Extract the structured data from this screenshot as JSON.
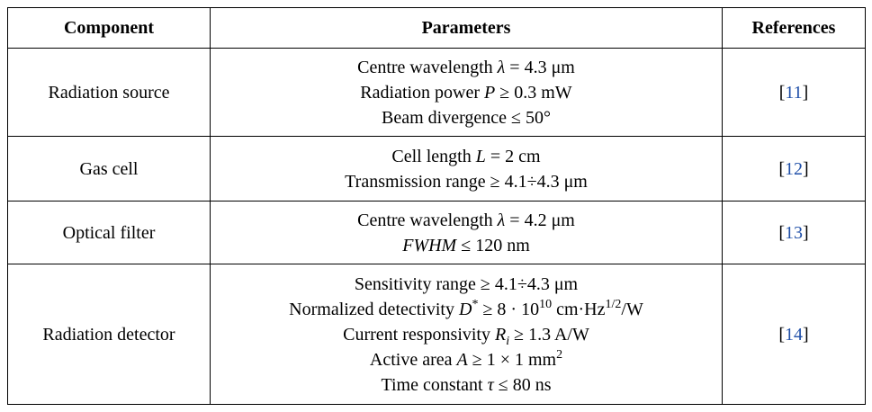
{
  "table": {
    "header": [
      "Component",
      "Parameters",
      "References"
    ],
    "rows": [
      {
        "component": "Radiation source",
        "parameters": [
          [
            {
              "t": "Centre wavelength "
            },
            {
              "t": "λ",
              "s": "italic"
            },
            {
              "t": " = 4.3 μm"
            }
          ],
          [
            {
              "t": "Radiation power "
            },
            {
              "t": "P",
              "s": "italic"
            },
            {
              "t": " ≥ 0.3 mW"
            }
          ],
          [
            {
              "t": "Beam divergence ≤ 50°"
            }
          ]
        ],
        "reference": "[11]"
      },
      {
        "component": "Gas cell",
        "parameters": [
          [
            {
              "t": "Cell length "
            },
            {
              "t": "L",
              "s": "italic"
            },
            {
              "t": " = 2 cm"
            }
          ],
          [
            {
              "t": "Transmission range ≥ 4.1÷4.3 μm"
            }
          ]
        ],
        "reference": "[12]"
      },
      {
        "component": "Optical filter",
        "parameters": [
          [
            {
              "t": "Centre wavelength "
            },
            {
              "t": "λ",
              "s": "italic"
            },
            {
              "t": " = 4.2 μm"
            }
          ],
          [
            {
              "t": "FWHM",
              "s": "italic"
            },
            {
              "t": " ≤ 120 nm"
            }
          ]
        ],
        "reference": "[13]"
      },
      {
        "component": "Radiation detector",
        "parameters": [
          [
            {
              "t": "Sensitivity range ≥ 4.1÷4.3 μm"
            }
          ],
          [
            {
              "t": "Normalized detectivity "
            },
            {
              "t": "D",
              "s": "italic"
            },
            {
              "t": "*",
              "s": "sup"
            },
            {
              "t": " ≥ 8 · 10"
            },
            {
              "t": "10",
              "s": "sup"
            },
            {
              "t": " cm·Hz"
            },
            {
              "t": "1/2",
              "s": "sup"
            },
            {
              "t": "/W"
            }
          ],
          [
            {
              "t": "Current responsivity "
            },
            {
              "t": "R",
              "s": "italic"
            },
            {
              "t": "i",
              "s": "sub"
            },
            {
              "t": " ≥ 1.3 A/W"
            }
          ],
          [
            {
              "t": "Active area "
            },
            {
              "t": "A",
              "s": "italic"
            },
            {
              "t": " ≥ 1 × 1 mm"
            },
            {
              "t": "2",
              "s": "sup"
            }
          ],
          [
            {
              "t": "Time constant "
            },
            {
              "t": "τ",
              "s": "italic"
            },
            {
              "t": " ≤ 80 ns"
            }
          ]
        ],
        "reference": "[14]"
      }
    ]
  }
}
